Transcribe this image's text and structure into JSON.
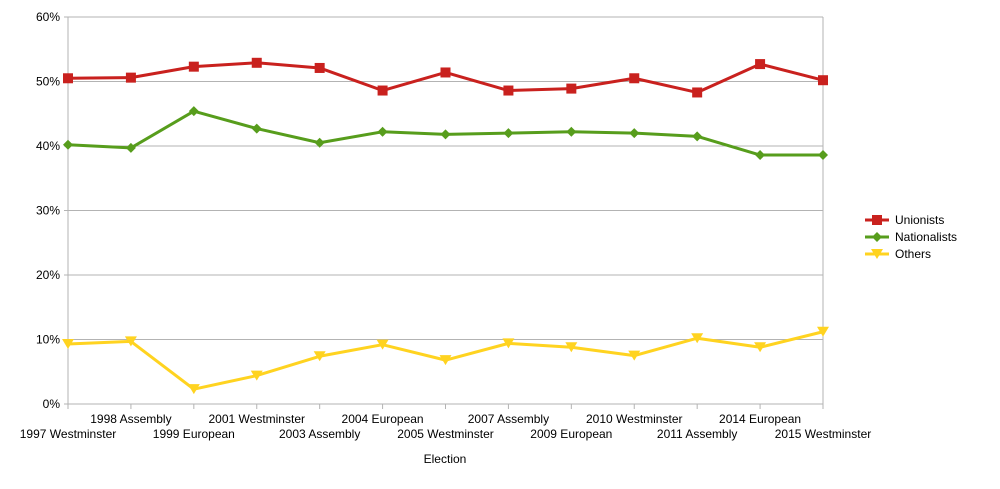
{
  "chart_data": {
    "type": "line",
    "title": "",
    "xlabel": "Election",
    "ylabel": "",
    "ylim": [
      0,
      60
    ],
    "y_unit": "%",
    "y_ticks": [
      "0%",
      "10%",
      "20%",
      "30%",
      "40%",
      "50%",
      "60%"
    ],
    "grid": "horizontal",
    "legend_position": "right",
    "categories": [
      "1997 Westminster",
      "1998 Assembly",
      "1999 European",
      "2001 Westminster",
      "2003 Assembly",
      "2004 European",
      "2005 Westminster",
      "2007 Assembly",
      "2009 European",
      "2010 Westminster",
      "2011 Assembly",
      "2014 European",
      "2015 Westminster"
    ],
    "series": [
      {
        "name": "Unionists",
        "color": "#c9211e",
        "marker": "square",
        "values": [
          50.5,
          50.6,
          52.3,
          52.9,
          52.1,
          48.6,
          51.4,
          48.6,
          48.9,
          50.5,
          48.3,
          52.7,
          50.2
        ]
      },
      {
        "name": "Nationalists",
        "color": "#579d1c",
        "marker": "diamond",
        "values": [
          40.2,
          39.7,
          45.4,
          42.7,
          40.5,
          42.2,
          41.8,
          42.0,
          42.2,
          42.0,
          41.5,
          38.6,
          38.6
        ]
      },
      {
        "name": "Others",
        "color": "#ffd320",
        "marker": "triangle-down",
        "values": [
          9.3,
          9.7,
          2.3,
          4.4,
          7.4,
          9.2,
          6.8,
          9.4,
          8.8,
          7.5,
          10.2,
          8.8,
          11.2
        ]
      }
    ]
  }
}
